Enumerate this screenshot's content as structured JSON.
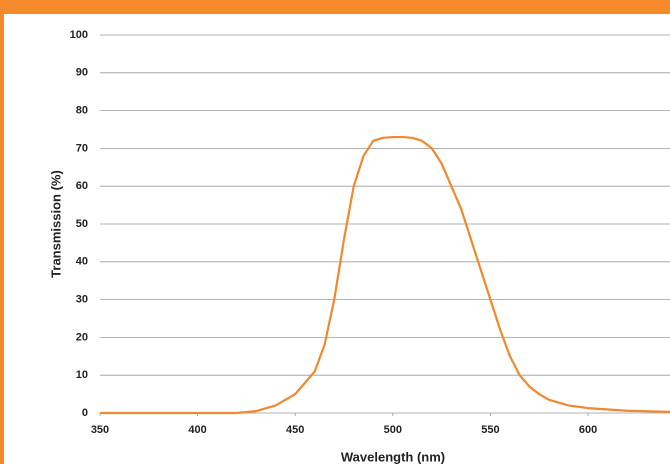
{
  "chart_data": {
    "type": "line",
    "x_label": "Wavelength (nm)",
    "y_label": "Transmission (%)",
    "x": [
      350,
      420,
      430,
      440,
      450,
      460,
      465,
      470,
      475,
      480,
      485,
      490,
      495,
      500,
      505,
      510,
      515,
      520,
      525,
      530,
      535,
      540,
      545,
      550,
      555,
      560,
      565,
      570,
      575,
      580,
      590,
      600,
      620,
      642
    ],
    "series": [
      {
        "name": "Transmission",
        "color": "#f0882e",
        "values": [
          0,
          0,
          0.5,
          2,
          5,
          11,
          18,
          30,
          46,
          60,
          68,
          72,
          72.8,
          73,
          73,
          72.8,
          72,
          70,
          66,
          60,
          54,
          46,
          38,
          30,
          22,
          15,
          10,
          7,
          5,
          3.5,
          2,
          1.3,
          0.6,
          0.3
        ]
      }
    ],
    "xlim": [
      350,
      642
    ],
    "ylim": [
      0,
      100
    ],
    "xticks": [
      350,
      400,
      450,
      500,
      550,
      600
    ],
    "yticks": [
      0,
      10,
      20,
      30,
      40,
      50,
      60,
      70,
      80,
      90,
      100
    ],
    "grid": true
  }
}
